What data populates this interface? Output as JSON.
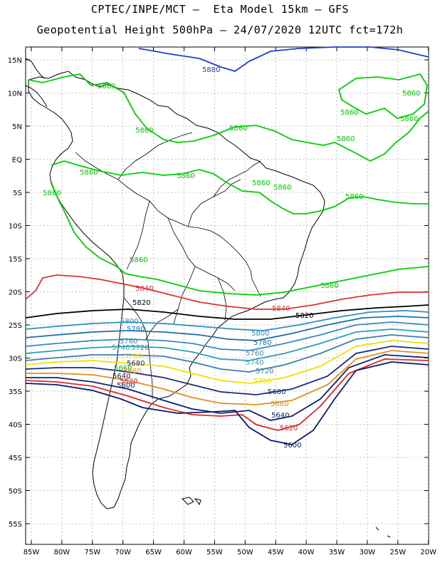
{
  "title_line1": "CPTEC/INPE/MCT –  Eta Model 15km – GFS",
  "title_line2": "Geopotential Height 500hPa – 24/07/2020 12UTC fct=172h",
  "lat_labels": [
    "15N",
    "10N",
    "5N",
    "EQ",
    "5S",
    "10S",
    "15S",
    "20S",
    "25S",
    "30S",
    "35S",
    "40S",
    "45S",
    "50S",
    "55S"
  ],
  "lon_labels": [
    "85W",
    "80W",
    "75W",
    "70W",
    "65W",
    "60W",
    "55W",
    "50W",
    "45W",
    "40W",
    "35W",
    "30W",
    "25W",
    "20W"
  ],
  "colors": {
    "c5880": "#1f3fd0",
    "c5860": "#00d000",
    "c5840": "#e03030",
    "c5820": "#000000",
    "c5800": "#2f8fbf",
    "c5780": "#1e6ea8",
    "c5760": "#3a88c0",
    "c5740": "#2aa0b8",
    "c5720": "#3b7fb0",
    "c5700": "#f0e000",
    "c5680": "#1a2a80",
    "c5660": "#e09020",
    "c5640": "#102070",
    "c5620": "#e02828",
    "c5600": "#0a1a6a"
  },
  "contour_labels": [
    {
      "text": "5880",
      "color": "c5880"
    },
    {
      "text": "5860",
      "color": "c5860"
    },
    {
      "text": "5860",
      "color": "c5860"
    },
    {
      "text": "5860",
      "color": "c5860"
    },
    {
      "text": "5860",
      "color": "c5860"
    },
    {
      "text": "5860",
      "color": "c5860"
    },
    {
      "text": "5860",
      "color": "c5860"
    },
    {
      "text": "5860",
      "color": "c5860"
    },
    {
      "text": "5860",
      "color": "c5860"
    },
    {
      "text": "5860",
      "color": "c5860"
    },
    {
      "text": "5860",
      "color": "c5860"
    },
    {
      "text": "5860",
      "color": "c5860"
    },
    {
      "text": "5860",
      "color": "c5860"
    },
    {
      "text": "5860",
      "color": "c5860"
    },
    {
      "text": "5860",
      "color": "c5860"
    },
    {
      "text": "5860",
      "color": "c5860"
    },
    {
      "text": "5860",
      "color": "c5860"
    },
    {
      "text": "5840",
      "color": "c5840"
    },
    {
      "text": "5840",
      "color": "c5840"
    },
    {
      "text": "5820",
      "color": "c5820"
    },
    {
      "text": "5820",
      "color": "c5820"
    },
    {
      "text": "5800",
      "color": "c5800"
    },
    {
      "text": "5800",
      "color": "c5800"
    },
    {
      "text": "5780",
      "color": "c5780"
    },
    {
      "text": "5780",
      "color": "c5780"
    },
    {
      "text": "5760",
      "color": "c5760"
    },
    {
      "text": "5760",
      "color": "c5760"
    },
    {
      "text": "5740",
      "color": "c5740"
    },
    {
      "text": "5740",
      "color": "c5740"
    },
    {
      "text": "5720",
      "color": "c5720"
    },
    {
      "text": "5720",
      "color": "c5720"
    },
    {
      "text": "5700",
      "color": "c5700"
    },
    {
      "text": "5700",
      "color": "c5700"
    },
    {
      "text": "5680",
      "color": "c5680"
    },
    {
      "text": "5680",
      "color": "c5680"
    },
    {
      "text": "5660",
      "color": "c5660"
    },
    {
      "text": "5660",
      "color": "c5660"
    },
    {
      "text": "5640",
      "color": "c5640"
    },
    {
      "text": "5640",
      "color": "c5640"
    },
    {
      "text": "5620",
      "color": "c5620"
    },
    {
      "text": "5620",
      "color": "c5620"
    },
    {
      "text": "5600",
      "color": "c5600"
    },
    {
      "text": "5600",
      "color": "c5600"
    }
  ]
}
